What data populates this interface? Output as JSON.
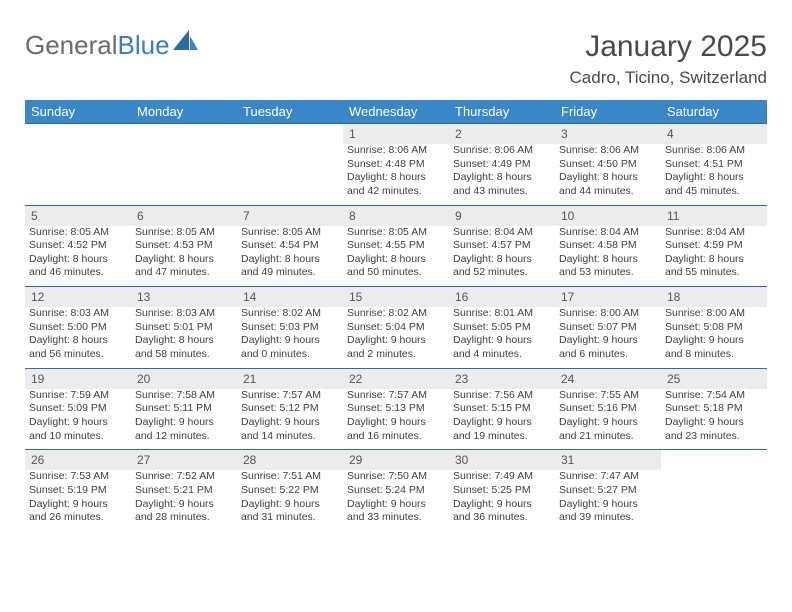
{
  "brand": {
    "part1": "General",
    "part2": "Blue"
  },
  "title": "January 2025",
  "location": "Cadro, Ticino, Switzerland",
  "colors": {
    "header_bg": "#3a87c7",
    "header_text": "#ffffff",
    "daynum_bg": "#ececec",
    "week_divider": "#2b6aa3",
    "body_text": "#404040",
    "title_text": "#4a4a4a",
    "brand_gray": "#6b6b6b",
    "brand_blue": "#3a7fc4",
    "page_bg": "#ffffff"
  },
  "weekdays": [
    "Sunday",
    "Monday",
    "Tuesday",
    "Wednesday",
    "Thursday",
    "Friday",
    "Saturday"
  ],
  "weeks": [
    [
      null,
      null,
      null,
      {
        "d": "1",
        "sr": "8:06 AM",
        "ss": "4:48 PM",
        "dl": "8 hours and 42 minutes."
      },
      {
        "d": "2",
        "sr": "8:06 AM",
        "ss": "4:49 PM",
        "dl": "8 hours and 43 minutes."
      },
      {
        "d": "3",
        "sr": "8:06 AM",
        "ss": "4:50 PM",
        "dl": "8 hours and 44 minutes."
      },
      {
        "d": "4",
        "sr": "8:06 AM",
        "ss": "4:51 PM",
        "dl": "8 hours and 45 minutes."
      }
    ],
    [
      {
        "d": "5",
        "sr": "8:05 AM",
        "ss": "4:52 PM",
        "dl": "8 hours and 46 minutes."
      },
      {
        "d": "6",
        "sr": "8:05 AM",
        "ss": "4:53 PM",
        "dl": "8 hours and 47 minutes."
      },
      {
        "d": "7",
        "sr": "8:05 AM",
        "ss": "4:54 PM",
        "dl": "8 hours and 49 minutes."
      },
      {
        "d": "8",
        "sr": "8:05 AM",
        "ss": "4:55 PM",
        "dl": "8 hours and 50 minutes."
      },
      {
        "d": "9",
        "sr": "8:04 AM",
        "ss": "4:57 PM",
        "dl": "8 hours and 52 minutes."
      },
      {
        "d": "10",
        "sr": "8:04 AM",
        "ss": "4:58 PM",
        "dl": "8 hours and 53 minutes."
      },
      {
        "d": "11",
        "sr": "8:04 AM",
        "ss": "4:59 PM",
        "dl": "8 hours and 55 minutes."
      }
    ],
    [
      {
        "d": "12",
        "sr": "8:03 AM",
        "ss": "5:00 PM",
        "dl": "8 hours and 56 minutes."
      },
      {
        "d": "13",
        "sr": "8:03 AM",
        "ss": "5:01 PM",
        "dl": "8 hours and 58 minutes."
      },
      {
        "d": "14",
        "sr": "8:02 AM",
        "ss": "5:03 PM",
        "dl": "9 hours and 0 minutes."
      },
      {
        "d": "15",
        "sr": "8:02 AM",
        "ss": "5:04 PM",
        "dl": "9 hours and 2 minutes."
      },
      {
        "d": "16",
        "sr": "8:01 AM",
        "ss": "5:05 PM",
        "dl": "9 hours and 4 minutes."
      },
      {
        "d": "17",
        "sr": "8:00 AM",
        "ss": "5:07 PM",
        "dl": "9 hours and 6 minutes."
      },
      {
        "d": "18",
        "sr": "8:00 AM",
        "ss": "5:08 PM",
        "dl": "9 hours and 8 minutes."
      }
    ],
    [
      {
        "d": "19",
        "sr": "7:59 AM",
        "ss": "5:09 PM",
        "dl": "9 hours and 10 minutes."
      },
      {
        "d": "20",
        "sr": "7:58 AM",
        "ss": "5:11 PM",
        "dl": "9 hours and 12 minutes."
      },
      {
        "d": "21",
        "sr": "7:57 AM",
        "ss": "5:12 PM",
        "dl": "9 hours and 14 minutes."
      },
      {
        "d": "22",
        "sr": "7:57 AM",
        "ss": "5:13 PM",
        "dl": "9 hours and 16 minutes."
      },
      {
        "d": "23",
        "sr": "7:56 AM",
        "ss": "5:15 PM",
        "dl": "9 hours and 19 minutes."
      },
      {
        "d": "24",
        "sr": "7:55 AM",
        "ss": "5:16 PM",
        "dl": "9 hours and 21 minutes."
      },
      {
        "d": "25",
        "sr": "7:54 AM",
        "ss": "5:18 PM",
        "dl": "9 hours and 23 minutes."
      }
    ],
    [
      {
        "d": "26",
        "sr": "7:53 AM",
        "ss": "5:19 PM",
        "dl": "9 hours and 26 minutes."
      },
      {
        "d": "27",
        "sr": "7:52 AM",
        "ss": "5:21 PM",
        "dl": "9 hours and 28 minutes."
      },
      {
        "d": "28",
        "sr": "7:51 AM",
        "ss": "5:22 PM",
        "dl": "9 hours and 31 minutes."
      },
      {
        "d": "29",
        "sr": "7:50 AM",
        "ss": "5:24 PM",
        "dl": "9 hours and 33 minutes."
      },
      {
        "d": "30",
        "sr": "7:49 AM",
        "ss": "5:25 PM",
        "dl": "9 hours and 36 minutes."
      },
      {
        "d": "31",
        "sr": "7:47 AM",
        "ss": "5:27 PM",
        "dl": "9 hours and 39 minutes."
      },
      null
    ]
  ],
  "labels": {
    "sunrise": "Sunrise:",
    "sunset": "Sunset:",
    "daylight": "Daylight:"
  }
}
